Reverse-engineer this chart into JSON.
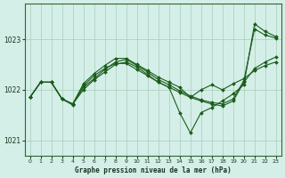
{
  "title": "Graphe pression niveau de la mer (hPa)",
  "background_color": "#d4eee8",
  "grid_color": "#aaccbb",
  "line_color": "#1a5c1a",
  "xlim": [
    -0.5,
    23.5
  ],
  "ylim": [
    1020.7,
    1023.7
  ],
  "yticks": [
    1021,
    1022,
    1023
  ],
  "xticks": [
    0,
    1,
    2,
    3,
    4,
    5,
    6,
    7,
    8,
    9,
    10,
    11,
    12,
    13,
    14,
    15,
    16,
    17,
    18,
    19,
    20,
    21,
    22,
    23
  ],
  "curves": [
    [
      1021.85,
      1022.15,
      1022.15,
      1021.82,
      1021.72,
      1022.0,
      1022.2,
      1022.35,
      1022.5,
      1022.55,
      1022.45,
      1022.3,
      1022.15,
      1022.05,
      1021.95,
      1021.85,
      1021.78,
      1021.72,
      1021.68,
      1021.78,
      1022.15,
      1022.42,
      1022.55,
      1022.65
    ],
    [
      1021.85,
      1022.15,
      1022.15,
      1021.82,
      1021.72,
      1022.05,
      1022.22,
      1022.4,
      1022.55,
      1022.6,
      1022.48,
      1022.35,
      1022.2,
      1022.1,
      1021.98,
      1021.88,
      1021.8,
      1021.75,
      1021.72,
      1021.82,
      1022.18,
      1023.2,
      1023.08,
      1023.02
    ],
    [
      1021.85,
      1022.15,
      1022.15,
      1021.82,
      1021.72,
      1022.12,
      1022.32,
      1022.48,
      1022.62,
      1022.62,
      1022.5,
      1022.38,
      1022.25,
      1022.15,
      1022.05,
      1021.85,
      1022.0,
      1022.1,
      1022.0,
      1022.12,
      1022.22,
      1022.38,
      1022.48,
      1022.55
    ],
    [
      1021.85,
      1022.15,
      1022.15,
      1021.82,
      1021.7,
      1022.08,
      1022.28,
      1022.42,
      1022.52,
      1022.52,
      1022.4,
      1022.28,
      1022.15,
      1022.05,
      1021.55,
      1021.15,
      1021.55,
      1021.65,
      1021.78,
      1021.92,
      1022.1,
      1023.3,
      1023.15,
      1023.05
    ]
  ]
}
